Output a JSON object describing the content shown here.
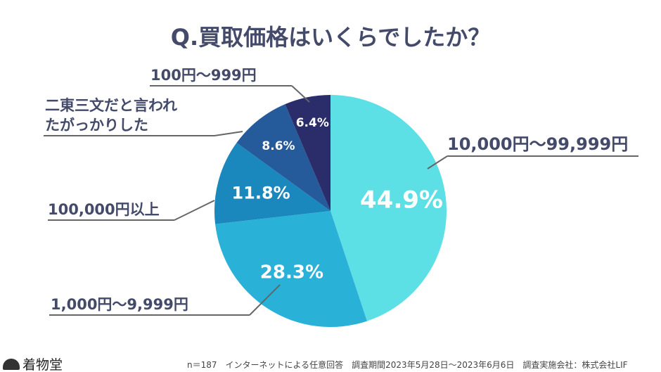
{
  "title": "Q.買取価格はいくらでしたか？",
  "chart_data": {
    "type": "pie",
    "title": "Q.買取価格はいくらでしたか？",
    "start": "top",
    "direction": "clockwise",
    "slices": [
      {
        "label": "10,000円〜99,999円",
        "value": 44.9,
        "value_label": "44.9%",
        "color": "#5ce0e6"
      },
      {
        "label": "1,000円〜9,999円",
        "value": 28.3,
        "value_label": "28.3%",
        "color": "#2ab1d8"
      },
      {
        "label": "100,000円以上",
        "value": 11.8,
        "value_label": "11.8%",
        "color": "#1a87bd"
      },
      {
        "label_lines": [
          "二東三文だと言われ",
          "たがっかりした"
        ],
        "value": 8.6,
        "value_label": "8.6%",
        "color": "#265b9b"
      },
      {
        "label": "100円〜999円",
        "value": 6.4,
        "value_label": "6.4%",
        "color": "#2b2c6a"
      }
    ]
  },
  "footer": "n＝187　インターネットによる任意回答　調査期間2023年5月28日〜2023年6月6日　調査実施会社：株式会社LIF",
  "logo": {
    "text": "着物堂",
    "icon": "fan-icon"
  }
}
